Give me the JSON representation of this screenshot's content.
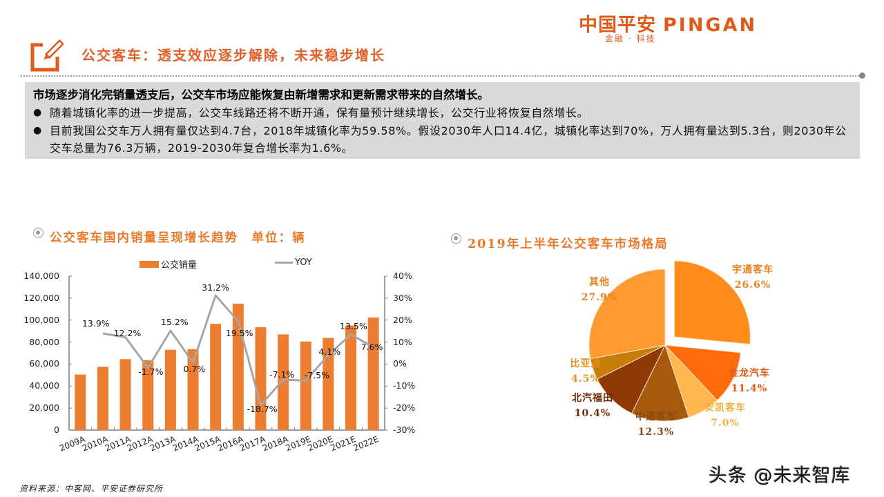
{
  "logo": {
    "cn": "中国平安",
    "en": "PINGAN",
    "tagline": "金融 · 科技",
    "brand_color": "#e05a1a",
    "accent_green": "#2e8b57"
  },
  "header": {
    "icon": "edit-pencil-icon",
    "title": "公交客车：透支效应逐步解除，未来稳步增长",
    "title_color": "#e0612a"
  },
  "summary": {
    "headline": "市场逐步消化完销量透支后，公交车市场应能恢复由新增需求和更新需求带来的自然增长。",
    "bullets": [
      "随着城镇化率的进一步提高，公交车线路还将不断开通，保有量预计继续增长，公交行业将恢复自然增长。",
      "目前我国公交车万人拥有量仅达到4.7台，2018年城镇化率为59.58%。假设2030年人口14.4亿，城镇化率达到70%，万人拥有量达到5.3台，则2030年公交车总量为76.3万辆，2019-2030年复合增长率为1.6%。"
    ],
    "bullet_glyph": "●",
    "background": "#d9d9d9"
  },
  "left_section": {
    "title": "公交客车国内销量呈现增长趋势　单位：辆"
  },
  "right_section": {
    "title": "2019年上半年公交客车市场格局"
  },
  "chart_data": [
    {
      "type": "bar+line",
      "title": "公交客车国内销量呈现增长趋势 单位：辆",
      "categories": [
        "2009A",
        "2010A",
        "2011A",
        "2012A",
        "2013A",
        "2014A",
        "2015A",
        "2016A",
        "2017A",
        "2018A",
        "2019E",
        "2020E",
        "2021E",
        "2022E"
      ],
      "series": [
        {
          "name": "公交销量",
          "type": "bar",
          "axis": "left",
          "color": "#ed7d31",
          "values": [
            50500,
            57500,
            64500,
            63500,
            73000,
            73500,
            96500,
            115000,
            93500,
            87000,
            80500,
            83800,
            95100,
            102300
          ]
        },
        {
          "name": "YOY",
          "type": "line",
          "axis": "right",
          "color": "#a6a6a6",
          "values": [
            null,
            13.9,
            12.2,
            -1.7,
            15.2,
            0.7,
            31.2,
            19.5,
            -18.7,
            -7.1,
            -7.5,
            4.1,
            13.5,
            7.6
          ],
          "labels": [
            "",
            "13.9%",
            "12.2%",
            "-1.7%",
            "15.2%",
            "0.7%",
            "31.2%",
            "19.5%",
            "-18.7%",
            "-7.1%",
            "-7.5%",
            "4.1%",
            "13.5%",
            "7.6%"
          ]
        }
      ],
      "y_left": {
        "ticks": [
          "0",
          "20,000",
          "40,000",
          "60,000",
          "80,000",
          "100,000",
          "120,000",
          "140,000"
        ],
        "range": [
          0,
          140000
        ]
      },
      "y_right": {
        "ticks": [
          "-30%",
          "-20%",
          "-10%",
          "0%",
          "10%",
          "20%",
          "30%",
          "40%"
        ],
        "range": [
          -30,
          40
        ]
      },
      "legend": [
        "公交销量",
        "YOY"
      ],
      "legend_position": "top",
      "grid": false
    },
    {
      "type": "pie",
      "title": "2019年上半年公交客车市场格局",
      "slices": [
        {
          "label": "宇通客车",
          "value": 26.6,
          "text": "26.6%",
          "color": "#ff8c1a",
          "label_color": "#e8801e",
          "exploded": true
        },
        {
          "label": "金龙汽车",
          "value": 11.4,
          "text": "11.4%",
          "color": "#ff6a0d",
          "label_color": "#e05a10"
        },
        {
          "label": "安凯客车",
          "value": 7.0,
          "text": "7.0%",
          "color": "#ffb84d",
          "label_color": "#f2b13c"
        },
        {
          "label": "中通客车",
          "value": 12.3,
          "text": "12.3%",
          "color": "#a65a0d",
          "label_color": "#8a4a12"
        },
        {
          "label": "北汽福田",
          "value": 10.4,
          "text": "10.4%",
          "color": "#8f3a06",
          "label_color": "#6e2a08"
        },
        {
          "label": "比亚迪",
          "value": 4.5,
          "text": "4.5%",
          "color": "#c77d0a",
          "label_color": "#e8901e"
        },
        {
          "label": "其他",
          "value": 27.9,
          "text": "27.9%",
          "color": "#ff9a33",
          "label_color": "#e8801e"
        }
      ]
    }
  ],
  "footer": {
    "source": "资料来源：中客网、平安证券研究所",
    "watermark": "头条 @未来智库"
  }
}
